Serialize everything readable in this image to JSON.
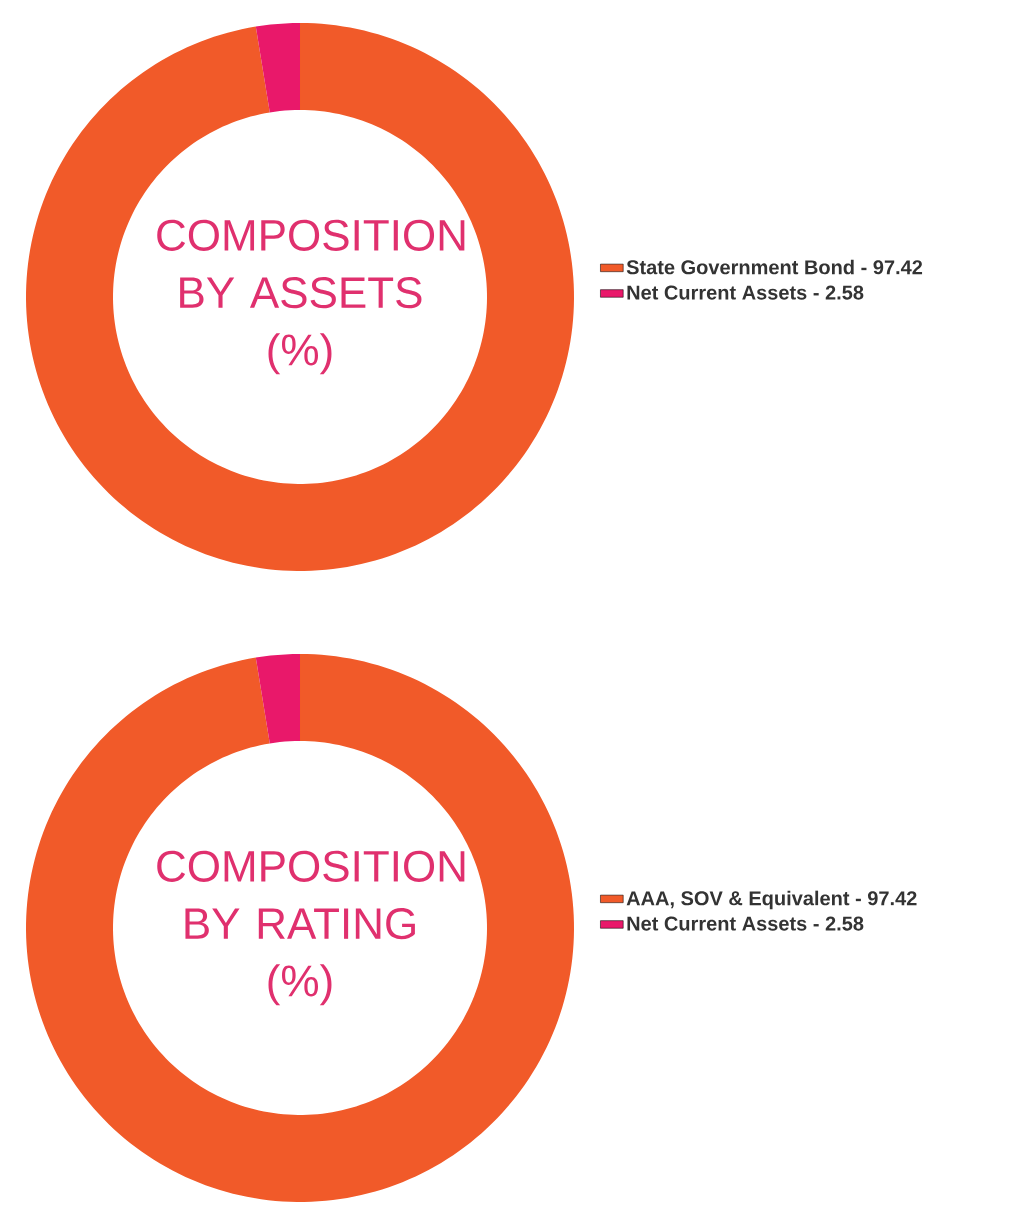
{
  "chart_data": [
    {
      "type": "donut",
      "title": "COMPOSITION BY ASSETS (%)",
      "categories": [
        "State Government Bond - 97.42",
        "Net Current Assets - 2.58"
      ],
      "values": [
        97.42,
        2.58
      ],
      "colors": [
        "#f15a29",
        "#e9186a"
      ],
      "legend": "right"
    },
    {
      "type": "donut",
      "title": "COMPOSITION BY RATING (%)",
      "categories": [
        "AAA, SOV & Equivalent - 97.42",
        "Net Current Assets - 2.58"
      ],
      "values": [
        97.42,
        2.58
      ],
      "colors": [
        "#f15a29",
        "#e9186a"
      ],
      "legend": "right"
    }
  ]
}
